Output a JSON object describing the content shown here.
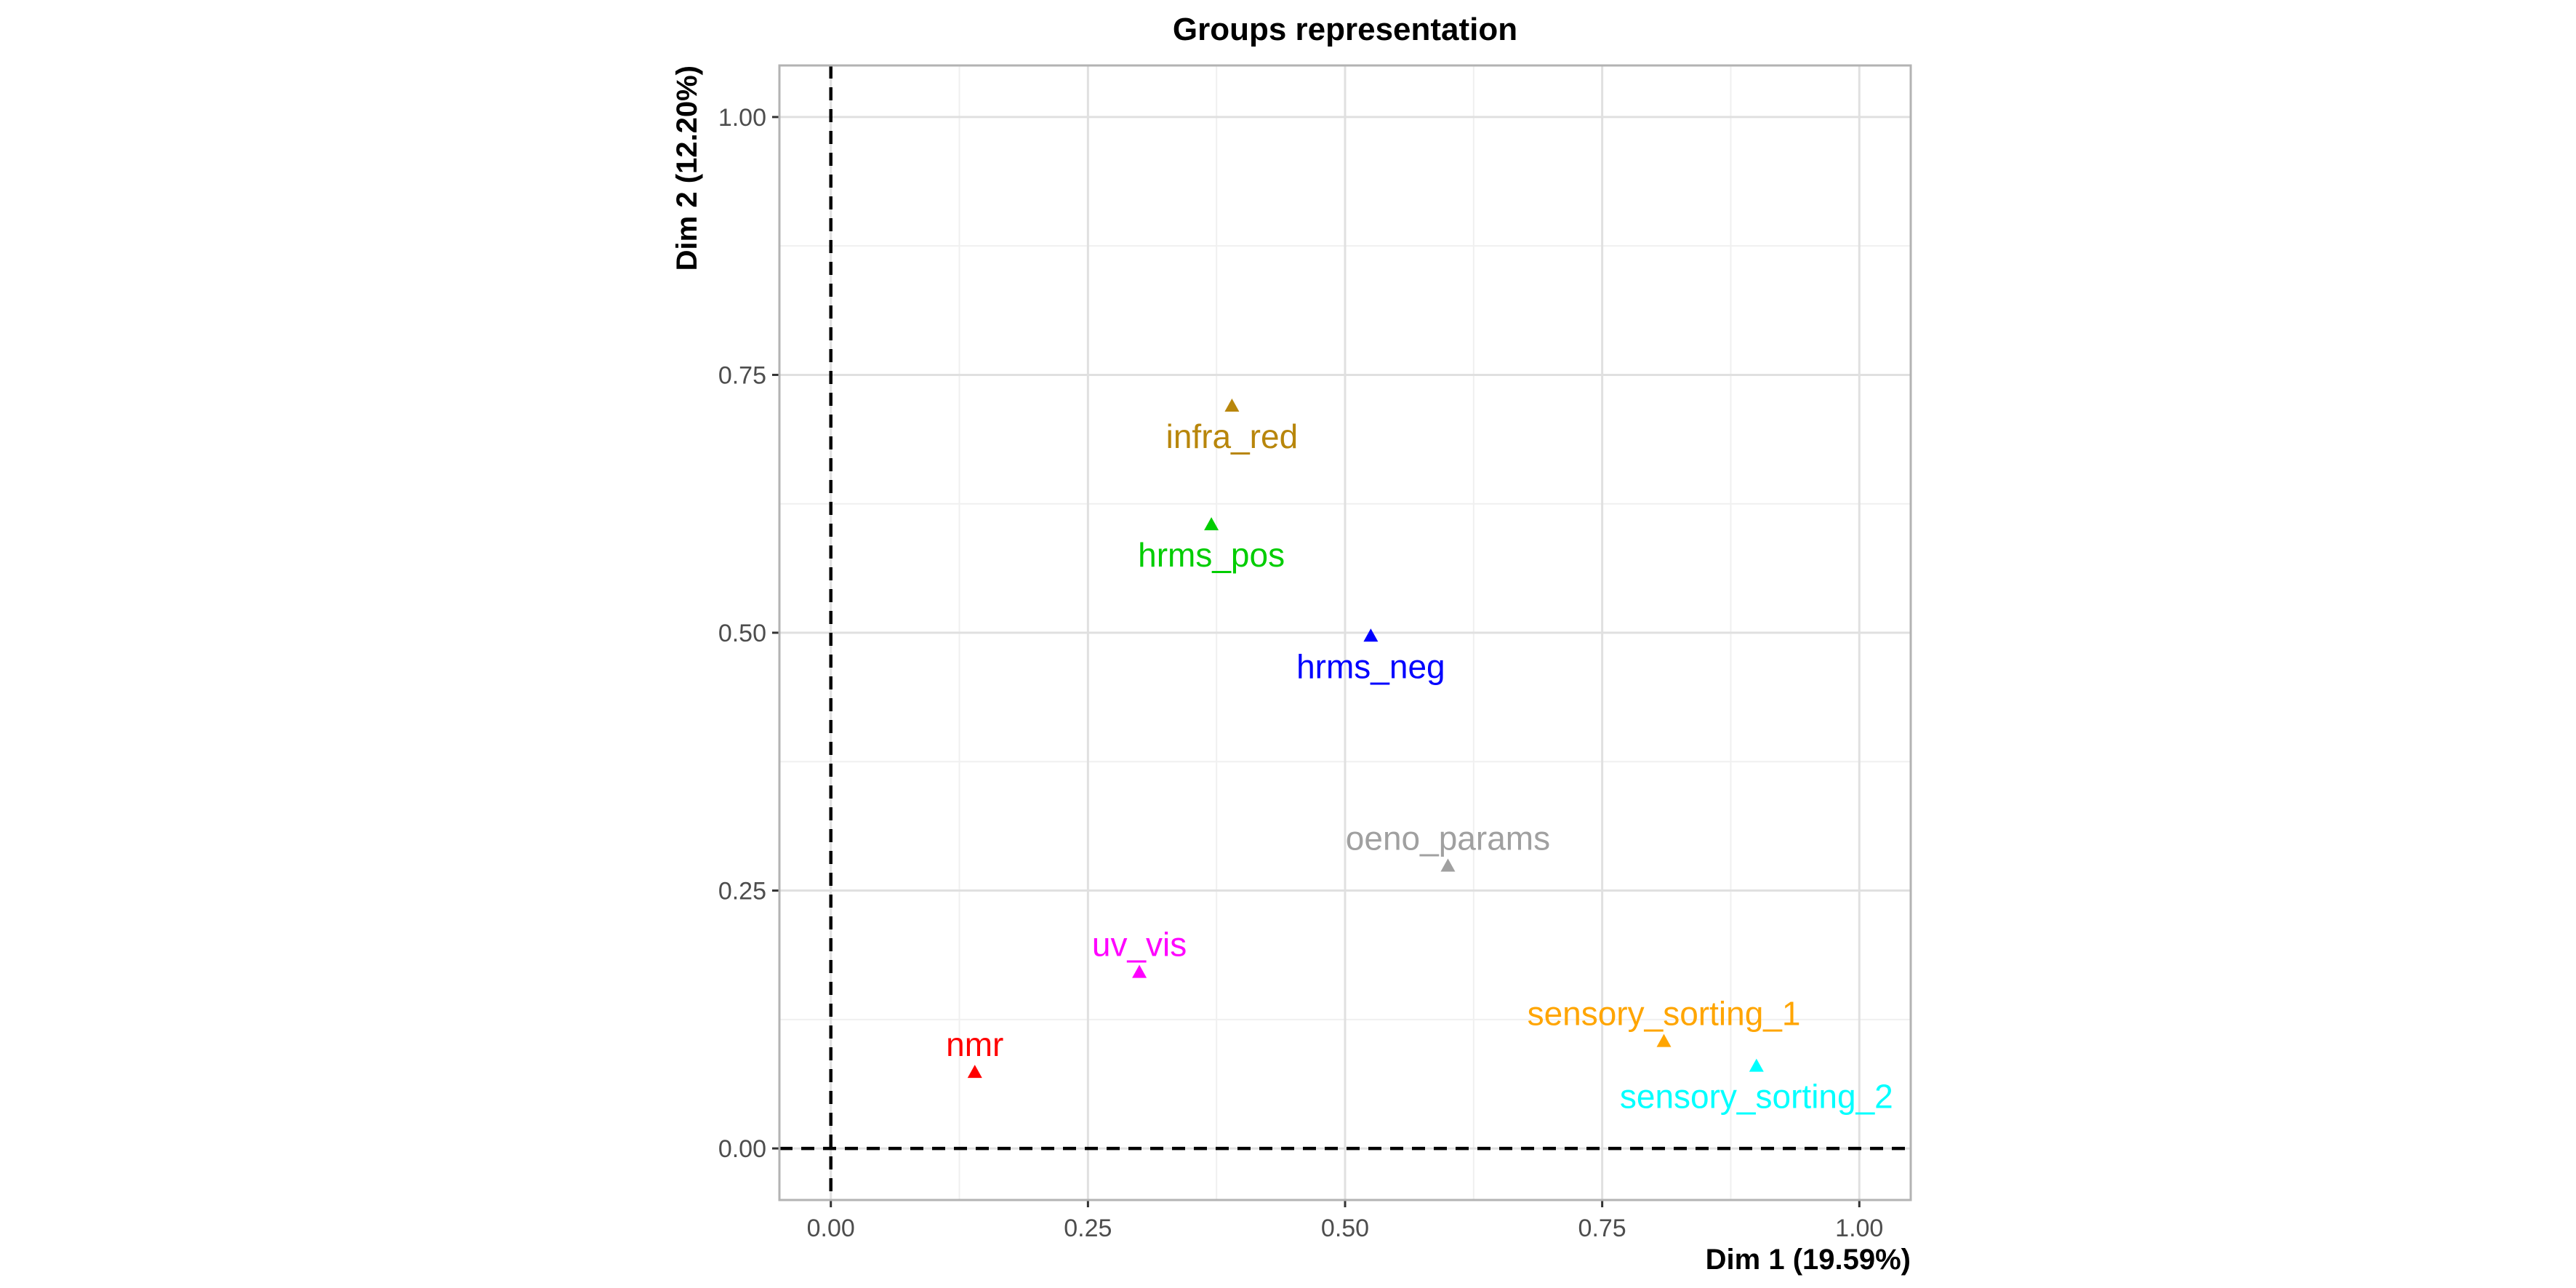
{
  "chart_data": {
    "type": "scatter",
    "title": "Groups representation",
    "xlabel": "Dim 1 (19.59%)",
    "ylabel": "Dim 2 (12.20%)",
    "xlim": [
      -0.05,
      1.05
    ],
    "ylim": [
      -0.05,
      1.05
    ],
    "x_ticks": [
      0.0,
      0.25,
      0.5,
      0.75,
      1.0
    ],
    "x_tick_labels": [
      "0.00",
      "0.25",
      "0.50",
      "0.75",
      "1.00"
    ],
    "y_ticks": [
      0.0,
      0.25,
      0.5,
      0.75,
      1.0
    ],
    "y_tick_labels": [
      "0.00",
      "0.25",
      "0.50",
      "0.75",
      "1.00"
    ],
    "grid": true,
    "reference_lines": {
      "x": 0,
      "y": 0,
      "style": "dashed"
    },
    "marker": "triangle",
    "points": [
      {
        "label": "infra_red",
        "x": 0.39,
        "y": 0.72,
        "color": "#B8860B",
        "label_pos": "below"
      },
      {
        "label": "hrms_pos",
        "x": 0.37,
        "y": 0.605,
        "color": "#00CD00",
        "label_pos": "below"
      },
      {
        "label": "hrms_neg",
        "x": 0.525,
        "y": 0.497,
        "color": "#0000FF",
        "label_pos": "below"
      },
      {
        "label": "oeno_params",
        "x": 0.6,
        "y": 0.274,
        "color": "#A0A0A0",
        "label_pos": "above"
      },
      {
        "label": "uv_vis",
        "x": 0.3,
        "y": 0.171,
        "color": "#FF00FF",
        "label_pos": "above"
      },
      {
        "label": "nmr",
        "x": 0.14,
        "y": 0.074,
        "color": "#FF0000",
        "label_pos": "above"
      },
      {
        "label": "sensory_sorting_1",
        "x": 0.81,
        "y": 0.104,
        "color": "#FFA500",
        "label_pos": "above"
      },
      {
        "label": "sensory_sorting_2",
        "x": 0.9,
        "y": 0.08,
        "color": "#00FFFF",
        "label_pos": "below"
      }
    ]
  }
}
